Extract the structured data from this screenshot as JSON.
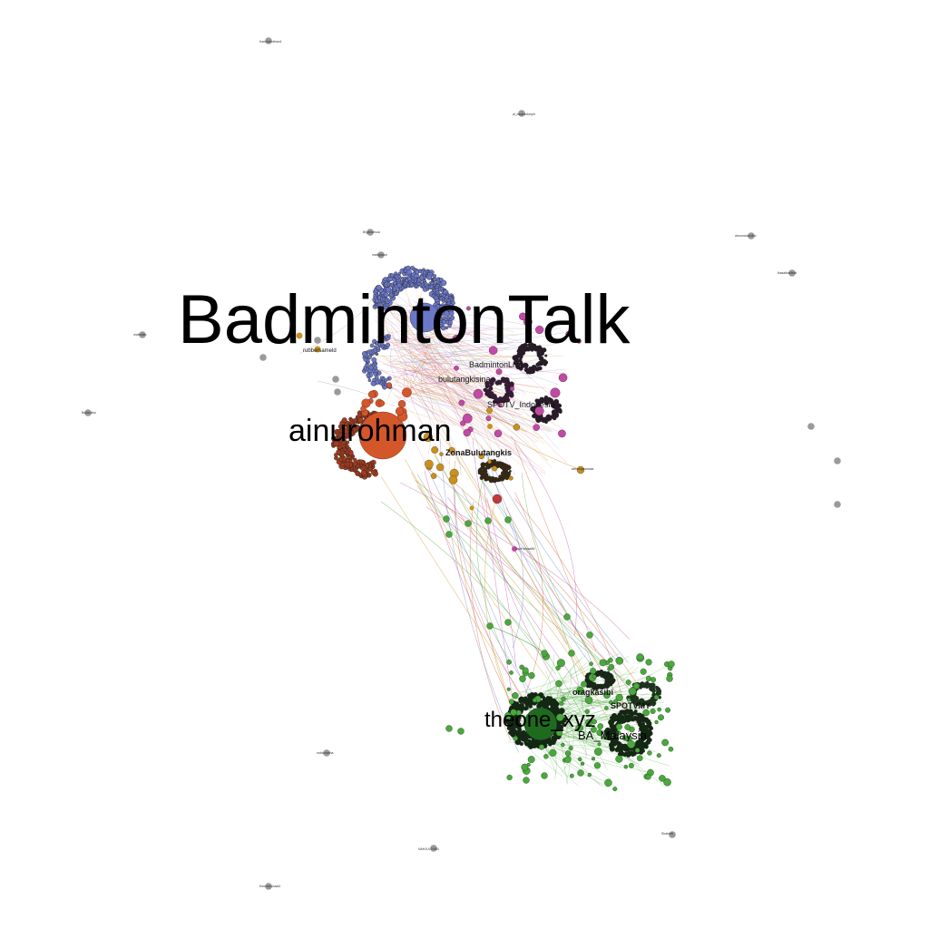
{
  "graph": {
    "hub_labels": {
      "badmintontalk": "BadmintonTalk",
      "ainurohman": "ainurohman",
      "theone_xyz": "theone_xyz"
    },
    "cluster_labels": [
      "BadmintonLive",
      "bulutangkisina",
      "SPOTV_Indonesia",
      "ZonaBulutangkis",
      "oragkasibi",
      "SPOTVMY",
      "BA_Malaysia"
    ],
    "peripheral_labels": [
      "KamilaArdhian1",
      "ai_badmintonph",
      "Bryanalmua",
      "mathysiwa",
      "arbinegaramala",
      "rubbersameld",
      "mathnlan",
      "Bwfaudha",
      "DabHamsa86",
      "Kemoneosaal1",
      "NAHJULIVIAN",
      "nutdomatha",
      "drmondubodho",
      "lbasalbakfelid",
      "Sirahndi"
    ],
    "colors": {
      "blue": "#6b78c8",
      "magenta": "#c04aa8",
      "orange": "#d4572a",
      "gold": "#c8901e",
      "green": "#4aa83c",
      "dark": "#111111",
      "gray": "#9a9a9a"
    }
  }
}
